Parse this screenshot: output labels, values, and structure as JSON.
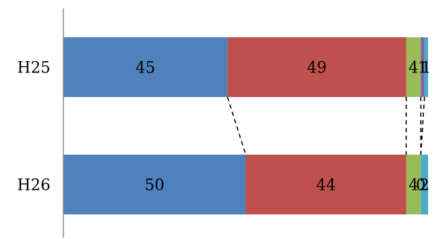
{
  "chart_data": {
    "type": "bar",
    "orientation": "horizontal",
    "stacked": "percent",
    "categories": [
      "H25",
      "H26"
    ],
    "series": [
      {
        "values": [
          45,
          50
        ],
        "color": "#4F81BD"
      },
      {
        "values": [
          49,
          44
        ],
        "color": "#C0504D"
      },
      {
        "values": [
          4,
          4
        ],
        "color": "#9BBB59"
      },
      {
        "values": [
          1,
          0
        ],
        "color": "#8064A2"
      },
      {
        "values": [
          1,
          2
        ],
        "color": "#4BACC6"
      }
    ],
    "data_labels": [
      [
        "45",
        "49",
        "4",
        "1",
        "1"
      ],
      [
        "50",
        "44",
        "4",
        "0",
        "2"
      ]
    ],
    "series_connector_lines": "dashed",
    "legend": "none",
    "gridlines": false,
    "title": "",
    "xlabel": "",
    "ylabel": ""
  }
}
